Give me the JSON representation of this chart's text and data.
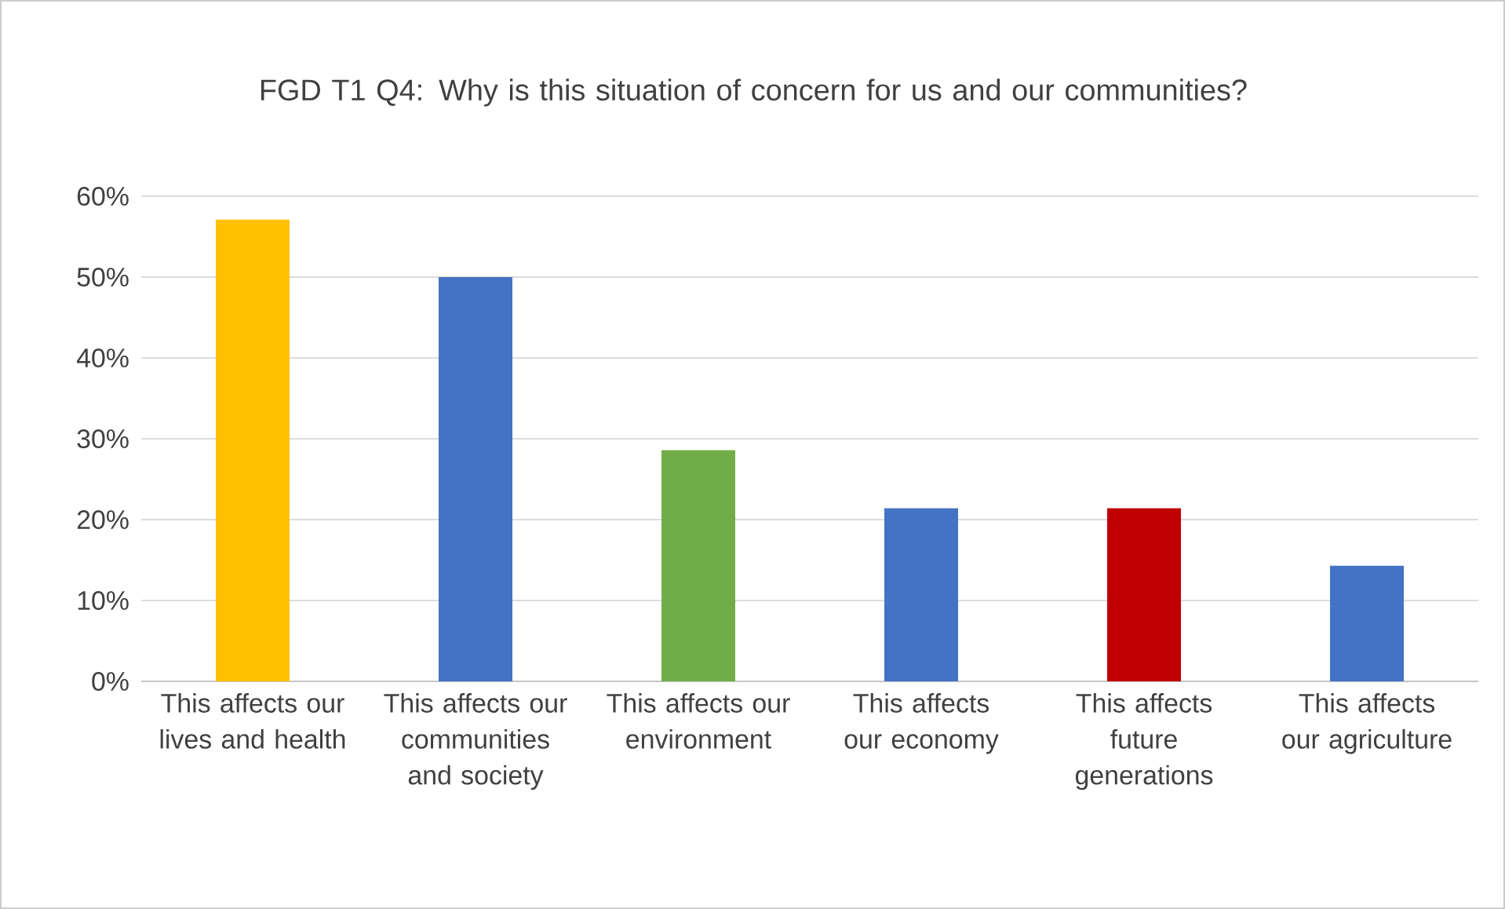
{
  "chart_data": {
    "type": "bar",
    "title": "FGD T1 Q4: Why is this situation of concern for us and our communities?",
    "categories": [
      "This affects our lives and health",
      "This affects our communities and society",
      "This affects our environment",
      "This affects our economy",
      "This affects future generations",
      "This affects our agriculture"
    ],
    "values": [
      57.1,
      50.0,
      28.6,
      21.4,
      21.4,
      14.3
    ],
    "colors": [
      "#ffc000",
      "#4472c4",
      "#70ad47",
      "#4472c4",
      "#c00000",
      "#4472c4"
    ],
    "ylim": [
      0,
      60
    ],
    "yticks": [
      {
        "value": 0,
        "label": "0%"
      },
      {
        "value": 10,
        "label": "10%"
      },
      {
        "value": 20,
        "label": "20%"
      },
      {
        "value": 30,
        "label": "30%"
      },
      {
        "value": 40,
        "label": "40%"
      },
      {
        "value": 50,
        "label": "50%"
      },
      {
        "value": 60,
        "label": "60%"
      }
    ],
    "grid": true
  }
}
